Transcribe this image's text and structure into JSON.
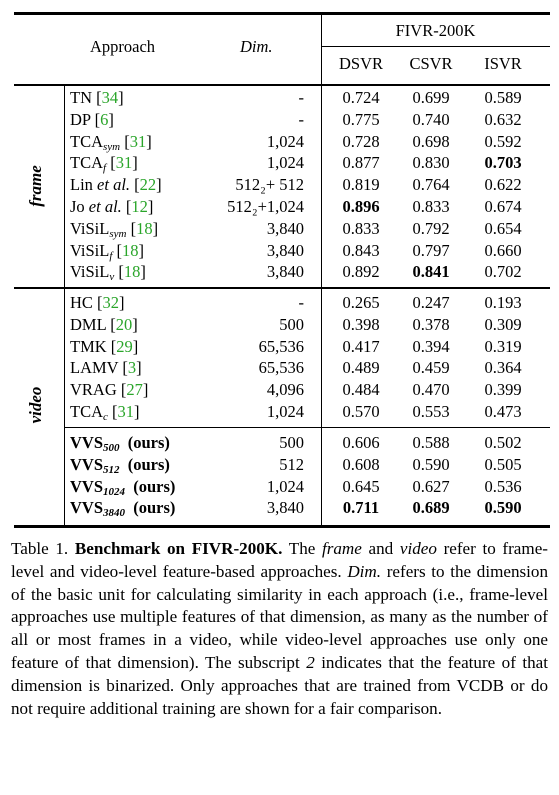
{
  "table": {
    "header": {
      "approach": "Approach",
      "dim": "Dim.",
      "dataset": "FIVR-200K",
      "metrics": [
        "DSVR",
        "CSVR",
        "ISVR"
      ]
    },
    "groups": [
      {
        "label": "frame",
        "rows": [
          {
            "name": "TN",
            "sub": "",
            "ref": "34",
            "dim": "-",
            "dsvr": "0.724",
            "csvr": "0.699",
            "isvr": "0.589",
            "bold": []
          },
          {
            "name": "DP",
            "sub": "",
            "ref": "6",
            "dim": "-",
            "dsvr": "0.775",
            "csvr": "0.740",
            "isvr": "0.632",
            "bold": []
          },
          {
            "name": "TCA",
            "sub": "sym",
            "ref": "31",
            "dim": "1,024",
            "dsvr": "0.728",
            "csvr": "0.698",
            "isvr": "0.592",
            "bold": []
          },
          {
            "name": "TCA",
            "sub": "f",
            "ref": "31",
            "dim": "1,024",
            "dsvr": "0.877",
            "csvr": "0.830",
            "isvr": "0.703",
            "bold": [
              "isvr"
            ]
          },
          {
            "name": "Lin et al.",
            "sub": "",
            "ref": "22",
            "dim": "512₂+ 512",
            "dsvr": "0.819",
            "csvr": "0.764",
            "isvr": "0.622",
            "bold": []
          },
          {
            "name": "Jo et al.",
            "sub": "",
            "ref": "12",
            "dim": "512₂+1,024",
            "dsvr": "0.896",
            "csvr": "0.833",
            "isvr": "0.674",
            "bold": [
              "dsvr"
            ]
          },
          {
            "name": "ViSiL",
            "sub": "sym",
            "ref": "18",
            "dim": "3,840",
            "dsvr": "0.833",
            "csvr": "0.792",
            "isvr": "0.654",
            "bold": []
          },
          {
            "name": "ViSiL",
            "sub": "f",
            "ref": "18",
            "dim": "3,840",
            "dsvr": "0.843",
            "csvr": "0.797",
            "isvr": "0.660",
            "bold": []
          },
          {
            "name": "ViSiL",
            "sub": "v",
            "ref": "18",
            "dim": "3,840",
            "dsvr": "0.892",
            "csvr": "0.841",
            "isvr": "0.702",
            "bold": [
              "csvr"
            ]
          }
        ]
      },
      {
        "label": "video",
        "rows": [
          {
            "name": "HC",
            "sub": "",
            "ref": "32",
            "dim": "-",
            "dsvr": "0.265",
            "csvr": "0.247",
            "isvr": "0.193",
            "bold": []
          },
          {
            "name": "DML",
            "sub": "",
            "ref": "20",
            "dim": "500",
            "dsvr": "0.398",
            "csvr": "0.378",
            "isvr": "0.309",
            "bold": []
          },
          {
            "name": "TMK",
            "sub": "",
            "ref": "29",
            "dim": "65,536",
            "dsvr": "0.417",
            "csvr": "0.394",
            "isvr": "0.319",
            "bold": []
          },
          {
            "name": "LAMV",
            "sub": "",
            "ref": "3",
            "dim": "65,536",
            "dsvr": "0.489",
            "csvr": "0.459",
            "isvr": "0.364",
            "bold": []
          },
          {
            "name": "VRAG",
            "sub": "",
            "ref": "27",
            "dim": "4,096",
            "dsvr": "0.484",
            "csvr": "0.470",
            "isvr": "0.399",
            "bold": []
          },
          {
            "name": "TCA",
            "sub": "c",
            "ref": "31",
            "dim": "1,024",
            "dsvr": "0.570",
            "csvr": "0.553",
            "isvr": "0.473",
            "bold": []
          }
        ],
        "ours": [
          {
            "name": "VVS",
            "sub": "500",
            "tag": "(ours)",
            "dim": "500",
            "dsvr": "0.606",
            "csvr": "0.588",
            "isvr": "0.502",
            "bold": []
          },
          {
            "name": "VVS",
            "sub": "512",
            "tag": "(ours)",
            "dim": "512",
            "dsvr": "0.608",
            "csvr": "0.590",
            "isvr": "0.505",
            "bold": []
          },
          {
            "name": "VVS",
            "sub": "1024",
            "tag": "(ours)",
            "dim": "1,024",
            "dsvr": "0.645",
            "csvr": "0.627",
            "isvr": "0.536",
            "bold": []
          },
          {
            "name": "VVS",
            "sub": "3840",
            "tag": "(ours)",
            "dim": "3,840",
            "dsvr": "0.711",
            "csvr": "0.689",
            "isvr": "0.590",
            "bold": [
              "dsvr",
              "csvr",
              "isvr"
            ]
          }
        ]
      }
    ]
  },
  "caption": {
    "label": "Table 1.",
    "title": "Benchmark on FIVR-200K.",
    "s1": "The",
    "frame": "frame",
    "and": "and",
    "video": "video",
    "s2": "refer to frame-level and video-level feature-based approaches.",
    "dim": "Dim.",
    "s3": "refers to the dimension of the basic unit for calculating similarity in each approach (i.e., frame-level approaches use multiple features of that dimension, as many as the number of all or most frames in a video, while video-level approaches use only one feature of that dimension). The subscript",
    "two": "2",
    "s4": "indicates that the feature of that dimension is binarized. Only approaches that are trained from VCDB or do not require additional training are shown for a fair comparison."
  }
}
